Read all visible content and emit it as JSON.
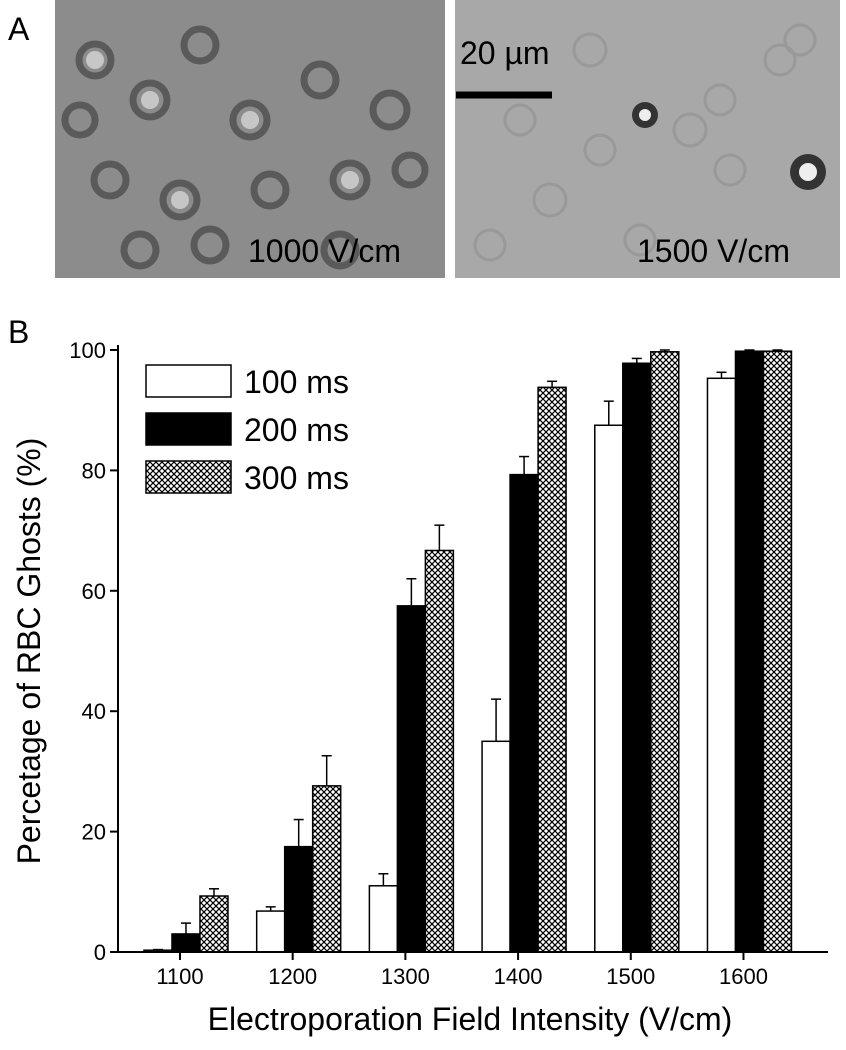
{
  "panel_a": {
    "label": "A",
    "images": [
      {
        "caption": "1000 V/cm"
      },
      {
        "caption": "1500 V/cm",
        "scale_bar": "20 µm"
      }
    ]
  },
  "panel_b": {
    "label": "B"
  },
  "chart_data": {
    "type": "bar",
    "xlabel": "Electroporation Field Intensity (V/cm)",
    "ylabel": "Percetage of RBC Ghosts (%)",
    "categories": [
      "1100",
      "1200",
      "1300",
      "1400",
      "1500",
      "1600"
    ],
    "series": [
      {
        "name": "100 ms",
        "color": "#ffffff",
        "values": [
          0.3,
          6.8,
          11,
          35,
          87.5,
          95.3
        ],
        "errors": [
          0.1,
          0.7,
          2,
          7,
          4,
          1
        ]
      },
      {
        "name": "200 ms",
        "color": "#000000",
        "values": [
          3,
          17.5,
          57.5,
          79.3,
          97.8,
          99.8
        ],
        "errors": [
          1.8,
          4.5,
          4.5,
          3,
          0.8,
          0.2
        ]
      },
      {
        "name": "300 ms",
        "color": "#ffffff",
        "pattern": "crosshatch",
        "values": [
          9.3,
          27.6,
          66.7,
          93.8,
          99.7,
          99.8
        ],
        "errors": [
          1.2,
          5,
          4.2,
          1,
          0.3,
          0.2
        ]
      }
    ],
    "ylim": [
      0,
      100
    ],
    "yticks": [
      0,
      20,
      40,
      60,
      80,
      100
    ],
    "legend": "upper left"
  }
}
